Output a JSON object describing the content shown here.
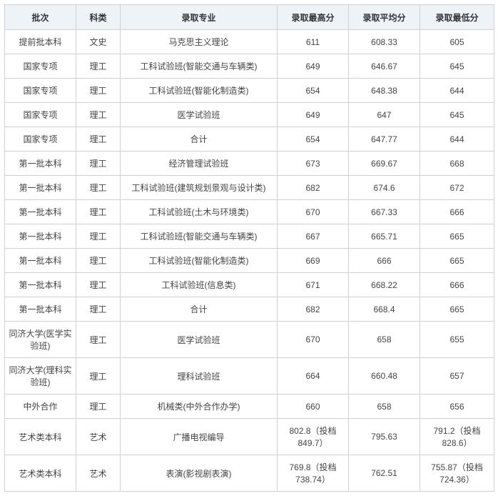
{
  "table": {
    "headers": [
      "批次",
      "科类",
      "录取专业",
      "录取最高分",
      "录取平均分",
      "录取最低分"
    ],
    "rows": [
      [
        "提前批本科",
        "文史",
        "马克思主义理论",
        "611",
        "608.33",
        "605"
      ],
      [
        "国家专项",
        "理工",
        "工科试验班(智能交通与车辆类)",
        "649",
        "646.67",
        "645"
      ],
      [
        "国家专项",
        "理工",
        "工科试验班(智能化制造类)",
        "654",
        "648.38",
        "644"
      ],
      [
        "国家专项",
        "理工",
        "医学试验班",
        "649",
        "647",
        "645"
      ],
      [
        "国家专项",
        "理工",
        "合计",
        "654",
        "647.77",
        "644"
      ],
      [
        "第一批本科",
        "理工",
        "经济管理试验班",
        "673",
        "669.67",
        "668"
      ],
      [
        "第一批本科",
        "理工",
        "工科试验班(建筑规划景观与设计类)",
        "682",
        "674.6",
        "672"
      ],
      [
        "第一批本科",
        "理工",
        "工科试验班(土木与环境类)",
        "670",
        "667.33",
        "666"
      ],
      [
        "第一批本科",
        "理工",
        "工科试验班(智能交通与车辆类)",
        "667",
        "665.71",
        "665"
      ],
      [
        "第一批本科",
        "理工",
        "工科试验班(智能化制造类)",
        "669",
        "666",
        "665"
      ],
      [
        "第一批本科",
        "理工",
        "工科试验班(信息类)",
        "671",
        "668.22",
        "666"
      ],
      [
        "第一批本科",
        "理工",
        "合计",
        "682",
        "668.4",
        "665"
      ],
      [
        "同济大学(医学实验班)",
        "理工",
        "医学试验班",
        "670",
        "658",
        "655"
      ],
      [
        "同济大学(理科实验班)",
        "理工",
        "理科试验班",
        "664",
        "660.48",
        "657"
      ],
      [
        "中外合作",
        "理工",
        "机械类(中外合作办学)",
        "660",
        "658",
        "656"
      ],
      [
        "艺术类本科",
        "艺术",
        "广播电视编导",
        "802.8（投档849.7）",
        "795.63",
        "791.2（投档828.6）"
      ],
      [
        "艺术类本科",
        "艺术",
        "表演(影视剧表演)",
        "769.8（投档738.74）",
        "762.51",
        "755.87（投档724.36）"
      ]
    ],
    "header_bg": "#eef3f8",
    "border_color": "#d0d0d0",
    "text_color": "#333333",
    "font_size": 12
  }
}
